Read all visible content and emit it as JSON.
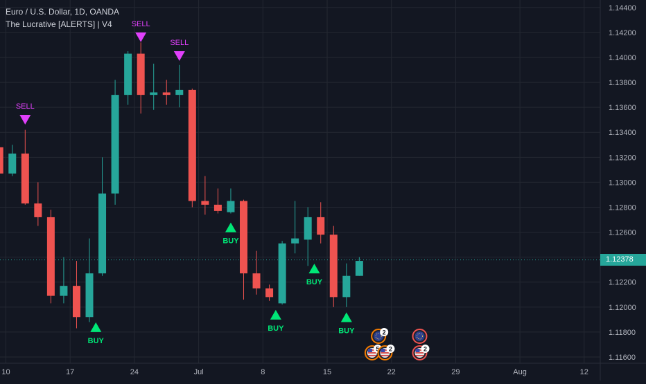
{
  "legend": {
    "symbol_line": "Euro / U.S. Dollar, 1D, OANDA",
    "indicator_line": "The Lucrative [ALERTS] | V4"
  },
  "colors": {
    "background": "#131722",
    "grid": "#242832",
    "up": "#26a69a",
    "down": "#ef5350",
    "sell": "#e040fb",
    "buy": "#00e676",
    "axis_text": "#b2b5be"
  },
  "chart_data": {
    "type": "candlestick",
    "ylim": [
      1.1155,
      1.1446
    ],
    "y_ticks": [
      "1.11600",
      "1.11800",
      "1.12000",
      "1.12200",
      "1.12400",
      "1.12600",
      "1.12800",
      "1.13000",
      "1.13200",
      "1.13400",
      "1.13600",
      "1.13800",
      "1.14000",
      "1.14200",
      "1.14400"
    ],
    "x_ticks": [
      {
        "label": "10",
        "bar": 0
      },
      {
        "label": "17",
        "bar": 5
      },
      {
        "label": "24",
        "bar": 10
      },
      {
        "label": "Jul",
        "bar": 15
      },
      {
        "label": "8",
        "bar": 20
      },
      {
        "label": "15",
        "bar": 25
      },
      {
        "label": "22",
        "bar": 30
      },
      {
        "label": "29",
        "bar": 35
      },
      {
        "label": "Aug",
        "bar": 40
      },
      {
        "label": "12",
        "bar": 45
      }
    ],
    "last_price": "1.12378",
    "last_value": 1.12378,
    "candles": [
      {
        "bar": -0.5,
        "o": 1.1328,
        "h": 1.1335,
        "l": 1.1295,
        "c": 1.1307
      },
      {
        "bar": 0.5,
        "o": 1.1307,
        "h": 1.133,
        "l": 1.1305,
        "c": 1.1323
      },
      {
        "bar": 1.5,
        "o": 1.1323,
        "h": 1.1342,
        "l": 1.1282,
        "c": 1.1283
      },
      {
        "bar": 2.5,
        "o": 1.1283,
        "h": 1.13,
        "l": 1.1265,
        "c": 1.1272
      },
      {
        "bar": 3.5,
        "o": 1.1272,
        "h": 1.1278,
        "l": 1.1203,
        "c": 1.1209
      },
      {
        "bar": 4.5,
        "o": 1.1209,
        "h": 1.124,
        "l": 1.1203,
        "c": 1.1217
      },
      {
        "bar": 5.5,
        "o": 1.1217,
        "h": 1.1237,
        "l": 1.1183,
        "c": 1.1192
      },
      {
        "bar": 6.5,
        "o": 1.1192,
        "h": 1.1255,
        "l": 1.1188,
        "c": 1.1227
      },
      {
        "bar": 7.5,
        "o": 1.1227,
        "h": 1.132,
        "l": 1.1225,
        "c": 1.1291
      },
      {
        "bar": 8.5,
        "o": 1.1291,
        "h": 1.1382,
        "l": 1.1282,
        "c": 1.137
      },
      {
        "bar": 9.5,
        "o": 1.137,
        "h": 1.1405,
        "l": 1.1362,
        "c": 1.1403
      },
      {
        "bar": 10.5,
        "o": 1.1403,
        "h": 1.1412,
        "l": 1.1355,
        "c": 1.137
      },
      {
        "bar": 11.5,
        "o": 1.137,
        "h": 1.1395,
        "l": 1.1358,
        "c": 1.1372
      },
      {
        "bar": 12.5,
        "o": 1.1372,
        "h": 1.1382,
        "l": 1.1362,
        "c": 1.137
      },
      {
        "bar": 13.5,
        "o": 1.137,
        "h": 1.1394,
        "l": 1.136,
        "c": 1.1374
      },
      {
        "bar": 14.5,
        "o": 1.1374,
        "h": 1.1375,
        "l": 1.128,
        "c": 1.1285
      },
      {
        "bar": 15.5,
        "o": 1.1285,
        "h": 1.1305,
        "l": 1.1274,
        "c": 1.1282
      },
      {
        "bar": 16.5,
        "o": 1.1282,
        "h": 1.1295,
        "l": 1.1275,
        "c": 1.1277
      },
      {
        "bar": 17.5,
        "o": 1.1276,
        "h": 1.1295,
        "l": 1.1275,
        "c": 1.1285
      },
      {
        "bar": 18.5,
        "o": 1.1285,
        "h": 1.1286,
        "l": 1.1206,
        "c": 1.1227
      },
      {
        "bar": 19.5,
        "o": 1.1227,
        "h": 1.1245,
        "l": 1.121,
        "c": 1.1215
      },
      {
        "bar": 20.5,
        "o": 1.1215,
        "h": 1.1218,
        "l": 1.1205,
        "c": 1.1208
      },
      {
        "bar": 21.5,
        "o": 1.1203,
        "h": 1.1253,
        "l": 1.1202,
        "c": 1.1251
      },
      {
        "bar": 22.5,
        "o": 1.1251,
        "h": 1.1285,
        "l": 1.1243,
        "c": 1.1255
      },
      {
        "bar": 23.5,
        "o": 1.1254,
        "h": 1.128,
        "l": 1.1233,
        "c": 1.1272
      },
      {
        "bar": 24.5,
        "o": 1.1272,
        "h": 1.1284,
        "l": 1.1251,
        "c": 1.1258
      },
      {
        "bar": 25.5,
        "o": 1.1258,
        "h": 1.1265,
        "l": 1.12,
        "c": 1.1208
      },
      {
        "bar": 26.5,
        "o": 1.1208,
        "h": 1.1235,
        "l": 1.12,
        "c": 1.1225
      },
      {
        "bar": 27.5,
        "o": 1.1225,
        "h": 1.124,
        "l": 1.1225,
        "c": 1.1237
      }
    ],
    "signals": [
      {
        "type": "sell",
        "bar": 1.5,
        "price": 1.1354,
        "label": "SELL"
      },
      {
        "type": "sell",
        "bar": 10.5,
        "price": 1.142,
        "label": "SELL"
      },
      {
        "type": "sell",
        "bar": 13.5,
        "price": 1.1405,
        "label": "SELL"
      },
      {
        "type": "buy",
        "bar": 7.0,
        "price": 1.118,
        "label": "BUY"
      },
      {
        "type": "buy",
        "bar": 17.5,
        "price": 1.126,
        "label": "BUY"
      },
      {
        "type": "buy",
        "bar": 21.0,
        "price": 1.119,
        "label": "BUY"
      },
      {
        "type": "buy",
        "bar": 24.0,
        "price": 1.1227,
        "label": "BUY"
      },
      {
        "type": "buy",
        "bar": 26.5,
        "price": 1.1188,
        "label": "BUY"
      }
    ],
    "events": [
      {
        "bar": 29.0,
        "row": 0,
        "flag": "eu-flag-icon",
        "ring": "#f57c00",
        "badge": "2"
      },
      {
        "bar": 28.5,
        "row": 1,
        "flag": "us-flag-icon",
        "ring": "#f57c00",
        "badge": "5"
      },
      {
        "bar": 29.5,
        "row": 1,
        "flag": "us-flag-icon",
        "ring": "#f57c00",
        "badge": "2"
      },
      {
        "bar": 32.2,
        "row": 0,
        "flag": "eu-flag-icon",
        "ring": "#ef5350",
        "badge": ""
      },
      {
        "bar": 32.2,
        "row": 1,
        "flag": "us-flag-icon",
        "ring": "#ef5350",
        "badge": "2"
      }
    ]
  }
}
